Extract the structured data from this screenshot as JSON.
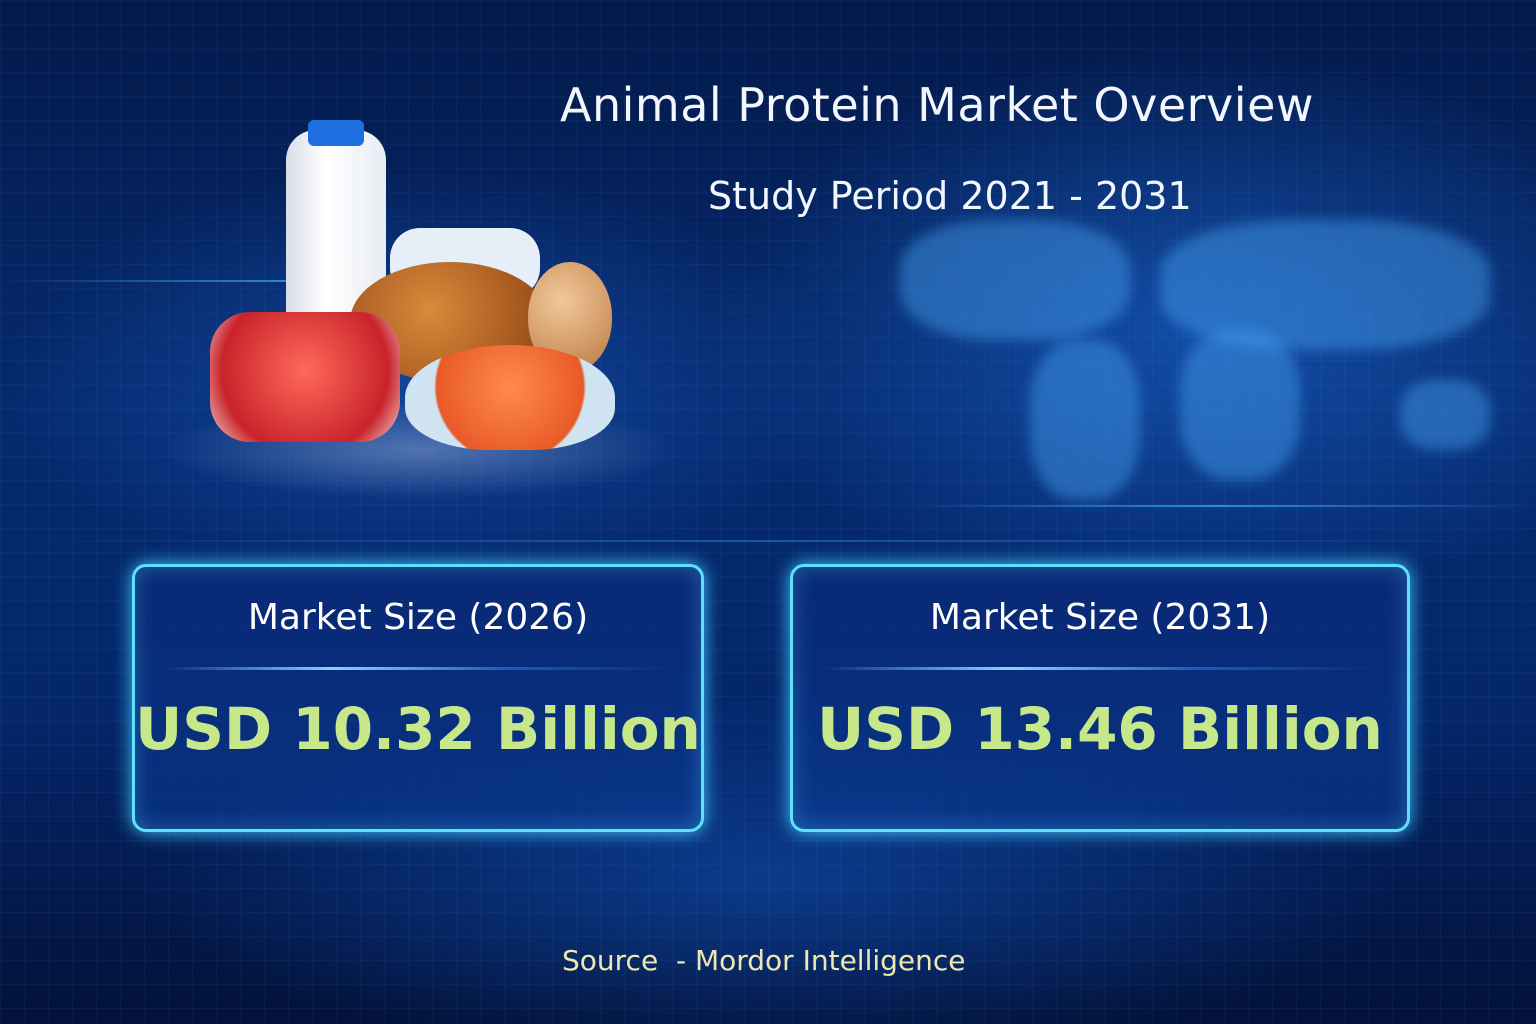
{
  "header": {
    "title": "Animal Protein Market Overview",
    "subtitle": "Study Period 2021 - 2031"
  },
  "cards": [
    {
      "label": "Market Size (2026)",
      "value": "USD 10.32 Billion"
    },
    {
      "label": "Market Size (2031)",
      "value": "USD 13.46 Billion"
    }
  ],
  "footer": {
    "source": "Source  - Mordor Intelligence"
  },
  "colors": {
    "background": "#062a6e",
    "card_border": "#5fe0ff",
    "value_text": "#c6e88a",
    "source_text": "#eee8b0"
  },
  "illustrations": [
    "milk-bottle",
    "raw-beef",
    "roast-chicken",
    "egg",
    "salmon-steak",
    "world-map"
  ]
}
